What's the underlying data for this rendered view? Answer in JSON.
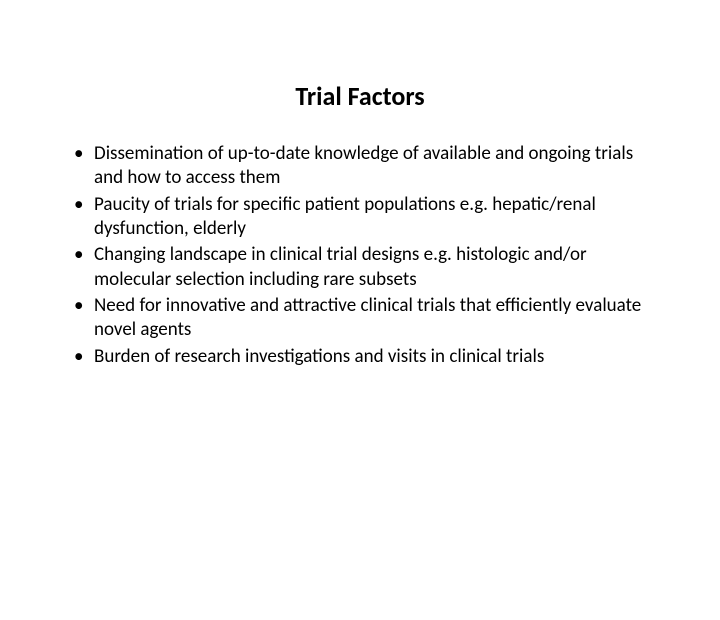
{
  "slide": {
    "title": "Trial Factors",
    "bullets": [
      "Dissemination of up-to-date knowledge of available and ongoing trials and how to access them",
      "Paucity of trials for specific patient populations e.g. hepatic/renal dysfunction, elderly",
      "Changing landscape in clinical trial designs e.g. histologic and/or molecular selection including rare subsets",
      "Need for innovative and attractive clinical trials that efficiently evaluate novel agents",
      "Burden of research investigations and visits in clinical trials"
    ]
  },
  "styling": {
    "background_color": "#ffffff",
    "text_color": "#000000",
    "title_fontsize": 26,
    "title_fontweight": "bold",
    "body_fontsize": 19,
    "font_family": "Calibri, Arial, sans-serif",
    "slide_width": 720,
    "slide_height": 540
  }
}
